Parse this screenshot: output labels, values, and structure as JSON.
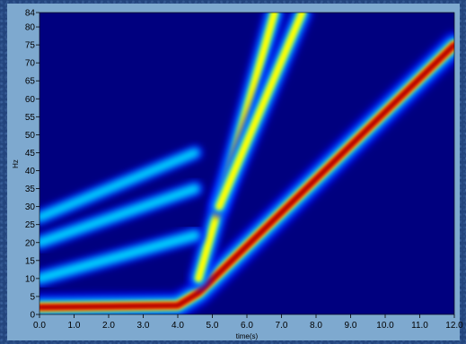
{
  "chart_data": {
    "type": "heatmap",
    "title": "",
    "xlabel": "time(s)",
    "ylabel": "Hz",
    "xlim": [
      0,
      12
    ],
    "ylim": [
      0,
      84
    ],
    "x_ticks": [
      "0.0",
      "1.0",
      "2.0",
      "3.0",
      "4.0",
      "5.0",
      "6.0",
      "7.0",
      "8.0",
      "9.0",
      "10.0",
      "11.0",
      "12.0"
    ],
    "y_ticks": [
      "0",
      "5",
      "10",
      "15",
      "20",
      "25",
      "30",
      "35",
      "40",
      "45",
      "50",
      "55",
      "60",
      "65",
      "70",
      "75",
      "80",
      "84"
    ],
    "colormap": [
      "#00007f",
      "#0000ff",
      "#00ffff",
      "#ffff00",
      "#ff0000",
      "#7f0000"
    ],
    "background_color": "#00007f",
    "ridges": [
      {
        "name": "",
        "points": [
          [
            0,
            2
          ],
          [
            4.0,
            2.5
          ],
          [
            4.6,
            6
          ],
          [
            12,
            75
          ]
        ],
        "intensity": 1.0
      },
      {
        "name": "",
        "points": [
          [
            4.6,
            10
          ],
          [
            6.8,
            84
          ]
        ],
        "intensity": 0.6
      },
      {
        "name": "",
        "points": [
          [
            5.2,
            30
          ],
          [
            7.6,
            84
          ]
        ],
        "intensity": 0.6
      },
      {
        "name": "",
        "points": [
          [
            0,
            10
          ],
          [
            4.5,
            22
          ]
        ],
        "intensity": 0.3
      },
      {
        "name": "",
        "points": [
          [
            0,
            20
          ],
          [
            4.5,
            35
          ]
        ],
        "intensity": 0.25
      },
      {
        "name": "",
        "points": [
          [
            0,
            27
          ],
          [
            4.5,
            45
          ]
        ],
        "intensity": 0.2
      }
    ]
  }
}
